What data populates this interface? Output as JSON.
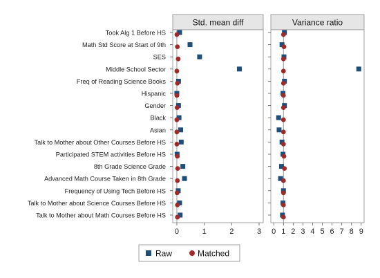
{
  "chart_data": {
    "type": "scatter",
    "categories": [
      "Took Alg 1 Before HS",
      "Math Std Score at Start of 9th",
      "SES",
      "Middle School Sector",
      "Freq of Reading Science Books",
      "Hispanic",
      "Gender",
      "Black",
      "Asian",
      "Talk to Mother about Other Courses Before HS",
      "Participated STEM activities Before HS",
      "8th Grade Science Grade",
      "Advanced Math Course Taken in 8th Grade",
      "Frequency of Using Tech Before HS",
      "Talk to Mother about Science Courses Before HS",
      "Talk to Mother about Math Courses Before HS"
    ],
    "panels": [
      {
        "title": "Std. mean diff",
        "xlim": [
          -0.15,
          3.15
        ],
        "xticks": [
          0,
          1,
          2,
          3
        ],
        "reference_line": 0,
        "series": [
          {
            "name": "Raw",
            "marker": "square",
            "color": "#1f4e79",
            "values": [
              0.1,
              0.48,
              0.83,
              2.28,
              0.06,
              0.0,
              0.06,
              0.08,
              0.14,
              0.16,
              0.01,
              0.22,
              0.28,
              0.05,
              0.1,
              0.12
            ]
          },
          {
            "name": "Matched",
            "marker": "circle",
            "color": "#9e2a2b",
            "values": [
              0.0,
              0.02,
              0.05,
              0.0,
              0.02,
              0.0,
              0.01,
              0.0,
              0.0,
              0.0,
              0.02,
              0.03,
              0.02,
              0.01,
              0.02,
              0.02
            ]
          }
        ]
      },
      {
        "title": "Variance ratio",
        "xlim": [
          -0.3,
          9.3
        ],
        "xticks": [
          0,
          1,
          2,
          3,
          4,
          5,
          6,
          7,
          8,
          9
        ],
        "reference_line": 1,
        "series": [
          {
            "name": "Raw",
            "marker": "square",
            "color": "#1f4e79",
            "values": [
              1.1,
              0.85,
              1.05,
              8.75,
              1.1,
              0.95,
              1.1,
              0.5,
              0.55,
              0.85,
              0.95,
              0.8,
              0.7,
              1.0,
              0.95,
              0.9
            ]
          },
          {
            "name": "Matched",
            "marker": "circle",
            "color": "#9e2a2b",
            "values": [
              1.0,
              1.05,
              1.0,
              1.0,
              1.0,
              1.0,
              1.0,
              1.0,
              1.0,
              1.0,
              1.05,
              1.1,
              1.0,
              1.0,
              1.0,
              1.0
            ]
          }
        ]
      }
    ],
    "legend": {
      "position": "bottom",
      "items": [
        "Raw",
        "Matched"
      ]
    }
  },
  "colors": {
    "raw": "#1f4e79",
    "matched": "#9e2a2b",
    "panel_header": "#e6e6e6",
    "reference_line": "#9b9b9b",
    "grid": "#dddddd"
  }
}
